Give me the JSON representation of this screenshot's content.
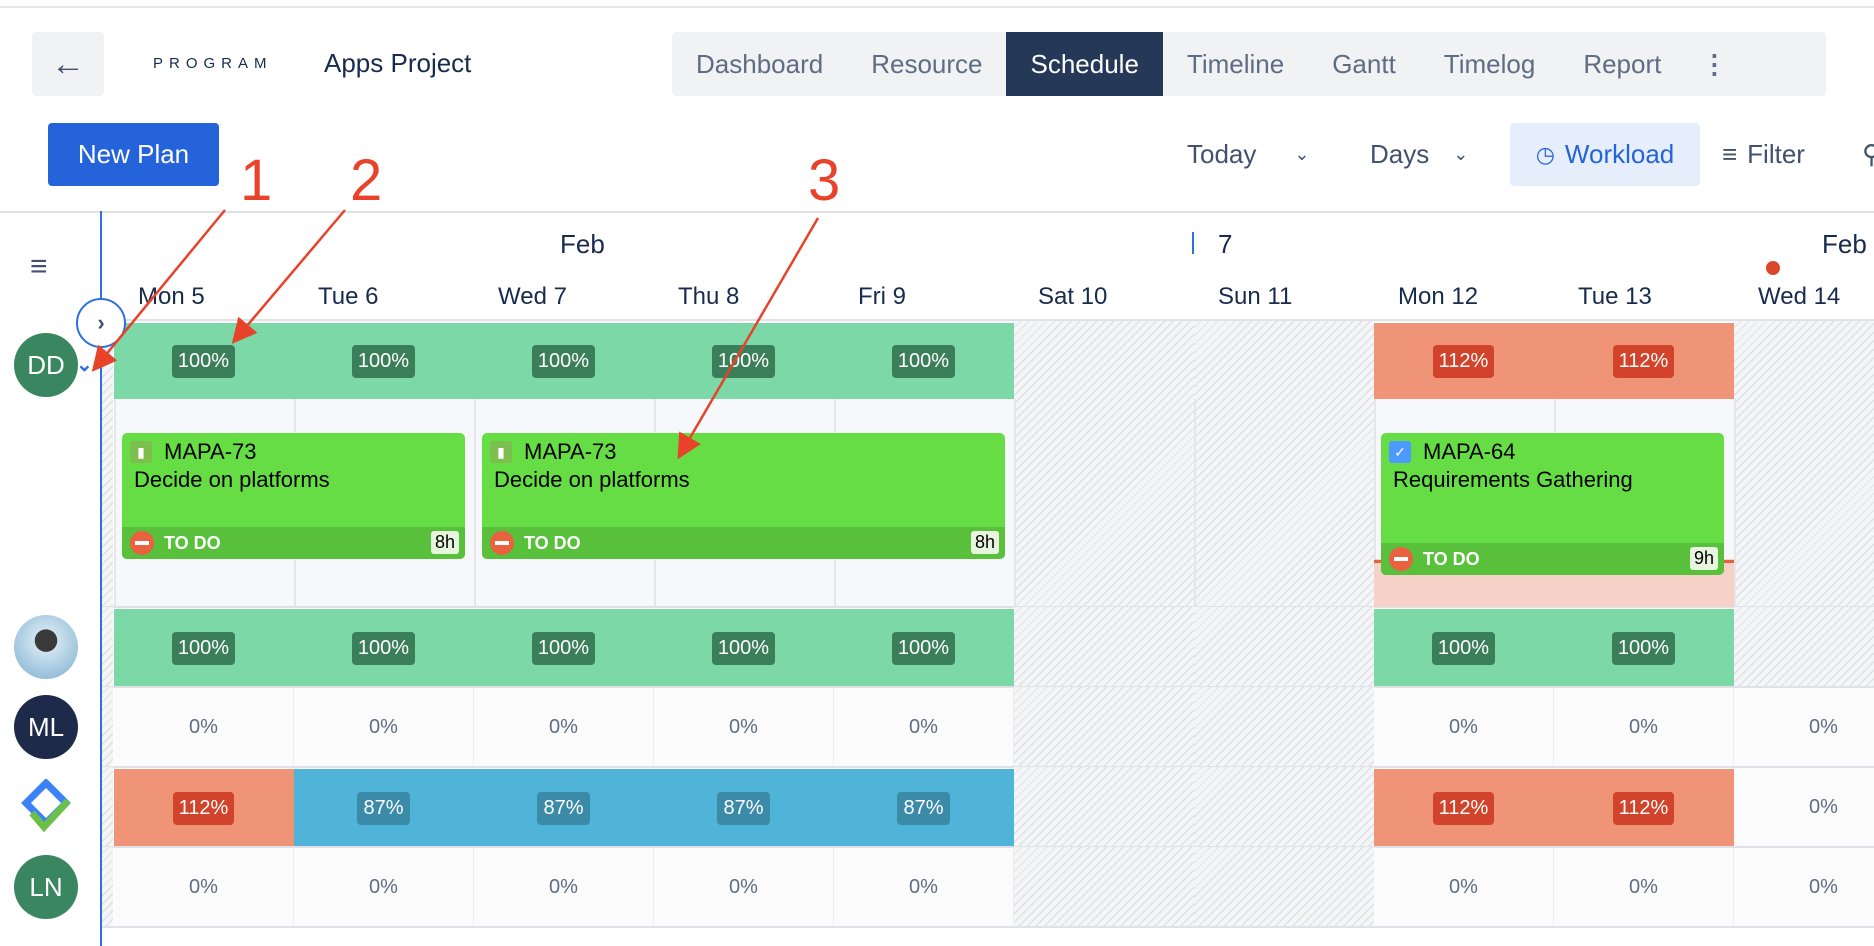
{
  "header": {
    "program_label": "PROGRAM",
    "project": "Apps Project",
    "back_icon": "arrow-left-icon",
    "tabs": [
      "Dashboard",
      "Resource",
      "Schedule",
      "Timeline",
      "Gantt",
      "Timelog",
      "Report"
    ],
    "active_tab": "Schedule"
  },
  "toolbar": {
    "new_plan": "New Plan",
    "today": "Today",
    "days": "Days",
    "workload": "Workload",
    "filter": "Filter"
  },
  "timeline": {
    "months": [
      {
        "label": "Feb"
      },
      {
        "label": "7"
      },
      {
        "label": "Feb"
      }
    ],
    "days": [
      "Mon 5",
      "Tue 6",
      "Wed 7",
      "Thu 8",
      "Fri 9",
      "Sat 10",
      "Sun 11",
      "Mon 12",
      "Tue 13",
      "Wed 14"
    ]
  },
  "colors": {
    "full": "#7dd8a8",
    "full_badge": "#3b7f5a",
    "over": "#f09478",
    "over_badge": "#d1432a",
    "under": "#50b4d8",
    "under_badge": "#3a8aa8",
    "card": "#67dd45",
    "accent": "#2563db"
  },
  "resources": [
    {
      "initials": "DD",
      "avatar_color": "#3a8660",
      "cells": [
        "100%",
        "100%",
        "100%",
        "100%",
        "100%",
        "w",
        "w",
        "112%",
        "112%",
        "h"
      ]
    },
    {
      "initials": "",
      "avatar_color": "#9fc3d8",
      "cells": [
        "100%",
        "100%",
        "100%",
        "100%",
        "100%",
        "w",
        "w",
        "100%",
        "100%",
        "h"
      ]
    },
    {
      "initials": "ML",
      "avatar_color": "#1e2a4a",
      "cells": [
        "0%",
        "0%",
        "0%",
        "0%",
        "0%",
        "w",
        "w",
        "0%",
        "0%",
        "0%"
      ]
    },
    {
      "initials": "",
      "avatar_color": "logo",
      "cells": [
        "112%",
        "87%",
        "87%",
        "87%",
        "87%",
        "w",
        "w",
        "112%",
        "112%",
        "0%"
      ]
    },
    {
      "initials": "LN",
      "avatar_color": "#3a8660",
      "cells": [
        "0%",
        "0%",
        "0%",
        "0%",
        "0%",
        "w",
        "w",
        "0%",
        "0%",
        "0%"
      ]
    }
  ],
  "tasks": [
    {
      "key": "MAPA-73",
      "title": "Decide on platforms",
      "status": "TO DO",
      "hours": "8h",
      "icon": "bookmark-icon"
    },
    {
      "key": "MAPA-73",
      "title": "Decide on platforms",
      "status": "TO DO",
      "hours": "8h",
      "icon": "bookmark-icon"
    },
    {
      "key": "MAPA-64",
      "title": "Requirements Gathering",
      "status": "TO DO",
      "hours": "9h",
      "icon": "checkbox-icon"
    }
  ],
  "annotations": [
    "1",
    "2",
    "3"
  ]
}
